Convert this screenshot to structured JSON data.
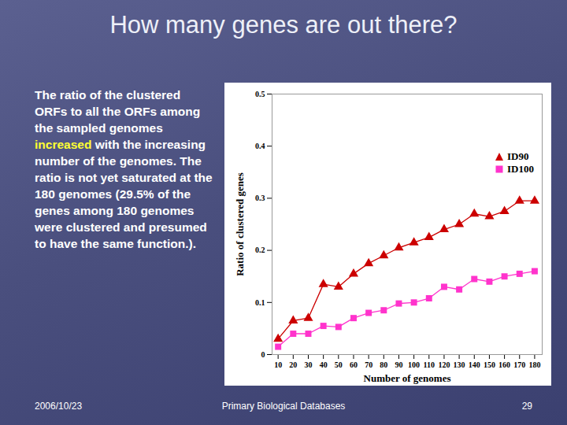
{
  "slide": {
    "title": "How many genes are out there?",
    "body": [
      {
        "text": "The ratio of the clustered ORFs to all the ORFs among the sampled genomes "
      },
      {
        "text": "increased",
        "highlight": true
      },
      {
        "text": " with the increasing number of the genomes.  The ratio is not yet saturated at the 180 genomes (29.5% of the genes among 180 genomes were clustered and presumed to have the same function.)."
      }
    ],
    "footer": {
      "date": "2006/10/23",
      "course": "Primary Biological Databases",
      "page": "29"
    }
  },
  "chart_data": {
    "type": "line",
    "x_label": "Number of genomes",
    "y_label": "Ratio of clustered genes",
    "x": [
      10,
      20,
      30,
      40,
      50,
      60,
      70,
      80,
      90,
      100,
      110,
      120,
      130,
      140,
      150,
      160,
      170,
      180
    ],
    "series": [
      {
        "name": "ID90",
        "color": "#cc0000",
        "marker": "triangle",
        "line_style": "solid",
        "values": [
          0.03,
          0.065,
          0.07,
          0.135,
          0.13,
          0.155,
          0.175,
          0.19,
          0.205,
          0.215,
          0.225,
          0.24,
          0.25,
          0.27,
          0.265,
          0.275,
          0.295,
          0.295
        ]
      },
      {
        "name": "ID100",
        "color": "#ff33cc",
        "marker": "square",
        "line_style": "solid",
        "values": [
          0.015,
          0.04,
          0.04,
          0.055,
          0.053,
          0.07,
          0.08,
          0.085,
          0.098,
          0.1,
          0.108,
          0.13,
          0.125,
          0.145,
          0.14,
          0.15,
          0.155,
          0.16
        ]
      }
    ],
    "xlim": [
      6,
      185
    ],
    "xticks": [
      10,
      20,
      30,
      40,
      50,
      60,
      70,
      80,
      90,
      100,
      110,
      120,
      130,
      140,
      150,
      160,
      170,
      180
    ],
    "ylim": [
      0,
      0.5
    ],
    "yticks": [
      0,
      0.1,
      0.2,
      0.3,
      0.4,
      0.5
    ],
    "grid": false,
    "legend": "upper right"
  }
}
